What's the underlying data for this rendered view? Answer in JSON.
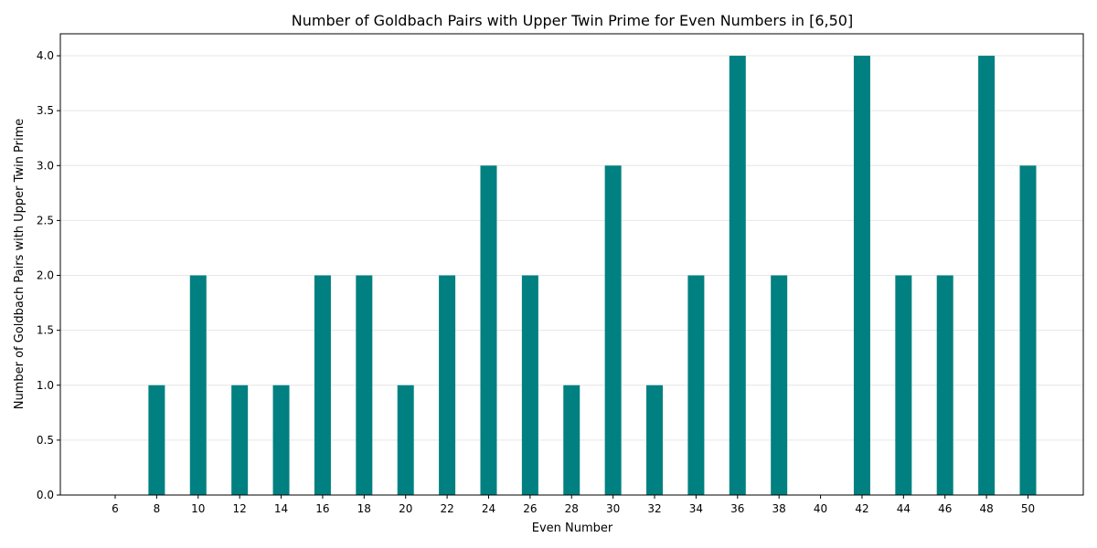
{
  "chart_data": {
    "type": "bar",
    "title": "Number of Goldbach Pairs with Upper Twin Prime for Even Numbers in [6,50]",
    "xlabel": "Even Number",
    "ylabel": "Number of Goldbach Pairs with Upper Twin Prime",
    "categories": [
      "6",
      "8",
      "10",
      "12",
      "14",
      "16",
      "18",
      "20",
      "22",
      "24",
      "26",
      "28",
      "30",
      "32",
      "34",
      "36",
      "38",
      "40",
      "42",
      "44",
      "46",
      "48",
      "50"
    ],
    "values": [
      0,
      1,
      2,
      1,
      1,
      2,
      2,
      1,
      2,
      3,
      2,
      1,
      3,
      1,
      2,
      4,
      2,
      0,
      4,
      2,
      2,
      4,
      3
    ],
    "ylim": [
      0,
      4.2
    ],
    "yticks": [
      "0.0",
      "0.5",
      "1.0",
      "1.5",
      "2.0",
      "2.5",
      "3.0",
      "3.5",
      "4.0"
    ],
    "ytick_values": [
      0,
      0.5,
      1,
      1.5,
      2,
      2.5,
      3,
      3.5,
      4
    ],
    "grid": "y",
    "bar_color": "#008080",
    "grid_color": "#e6e6e6"
  }
}
